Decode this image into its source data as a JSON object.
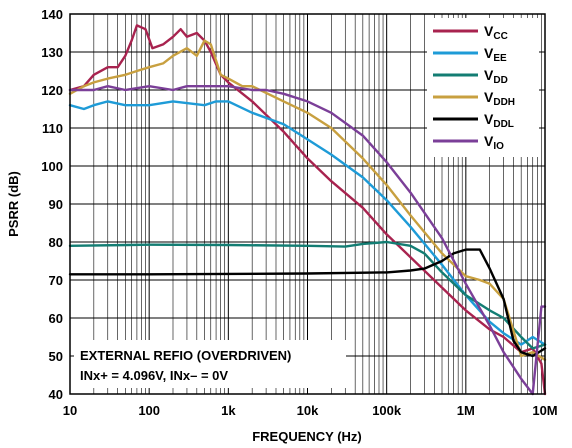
{
  "chart_data": {
    "type": "line",
    "xlabel": "FREQUENCY (Hz)",
    "ylabel": "PSRR (dB)",
    "x_scale": "log",
    "xlim": [
      10,
      10000000
    ],
    "ylim": [
      40,
      140
    ],
    "grid": true,
    "legend_position": "top-right",
    "x_ticks": [
      {
        "value": 10,
        "label": "10"
      },
      {
        "value": 100,
        "label": "100"
      },
      {
        "value": 1000,
        "label": "1k"
      },
      {
        "value": 10000,
        "label": "10k"
      },
      {
        "value": 100000,
        "label": "100k"
      },
      {
        "value": 1000000,
        "label": "1M"
      },
      {
        "value": 10000000,
        "label": "10M"
      }
    ],
    "y_ticks": [
      40,
      50,
      60,
      70,
      80,
      90,
      100,
      110,
      120,
      130,
      140
    ],
    "annotations": [
      "EXTERNAL REFIO (OVERDRIVEN)",
      "INx+ = 4.096V, INx– = 0V"
    ],
    "series": [
      {
        "name": "VCC",
        "base": "V",
        "sub": "CC",
        "color": "#a8234f",
        "x": [
          10,
          15,
          20,
          30,
          40,
          50,
          60,
          70,
          90,
          110,
          150,
          200,
          250,
          300,
          400,
          500,
          600,
          800,
          1000,
          2000,
          5000,
          10000,
          20000,
          50000,
          100000,
          200000,
          500000,
          1000000,
          2000000,
          3000000,
          5000000,
          7000000,
          9000000,
          10000000
        ],
        "y": [
          120,
          121,
          124,
          126,
          126,
          129,
          133,
          137,
          136,
          131,
          132,
          134,
          136,
          134,
          135,
          133,
          130,
          124,
          122,
          117,
          109,
          102,
          96,
          89,
          82,
          76,
          68,
          62,
          57,
          55,
          51,
          52,
          48,
          40
        ]
      },
      {
        "name": "VEE",
        "base": "V",
        "sub": "EE",
        "color": "#1e9bd7",
        "x": [
          10,
          15,
          20,
          30,
          50,
          100,
          200,
          500,
          700,
          1000,
          2000,
          5000,
          10000,
          20000,
          50000,
          100000,
          200000,
          500000,
          1000000,
          2000000,
          3000000,
          5000000,
          7000000,
          10000000
        ],
        "y": [
          116,
          115,
          116,
          117,
          116,
          116,
          117,
          116,
          117,
          117,
          114,
          111,
          107,
          103,
          97,
          91,
          84,
          74,
          66,
          59,
          56,
          53,
          55,
          53
        ]
      },
      {
        "name": "VDD",
        "base": "V",
        "sub": "DD",
        "color": "#137d73",
        "x": [
          10,
          100,
          1000,
          10000,
          30000,
          50000,
          100000,
          200000,
          300000,
          500000,
          1000000,
          2000000,
          3000000,
          5000000,
          7000000,
          10000000
        ],
        "y": [
          79,
          79.3,
          79.2,
          79,
          78.8,
          79.5,
          80,
          79,
          77,
          72,
          66,
          62,
          60,
          55,
          52,
          53
        ]
      },
      {
        "name": "VDDH",
        "base": "V",
        "sub": "DDH",
        "color": "#c8a040",
        "x": [
          10,
          15,
          20,
          30,
          50,
          70,
          100,
          150,
          200,
          300,
          400,
          500,
          600,
          800,
          1000,
          1500,
          2000,
          5000,
          10000,
          20000,
          50000,
          100000,
          200000,
          500000,
          1000000,
          1500000,
          2000000,
          3000000,
          5000000,
          7000000,
          10000000
        ],
        "y": [
          119,
          121,
          122,
          123,
          124,
          125,
          126,
          127,
          129,
          131,
          129,
          133,
          132,
          124,
          123,
          121,
          121,
          117,
          114,
          110,
          102,
          95,
          87,
          77,
          71,
          70,
          69,
          65,
          50,
          51,
          49
        ]
      },
      {
        "name": "VDDL",
        "base": "V",
        "sub": "DDL",
        "color": "#000000",
        "x": [
          10,
          100,
          1000,
          10000,
          100000,
          200000,
          300000,
          500000,
          700000,
          1000000,
          1500000,
          2000000,
          3000000,
          4000000,
          5000000,
          7000000,
          10000000
        ],
        "y": [
          71.5,
          71.5,
          71.6,
          71.7,
          72,
          72.5,
          73,
          75,
          77,
          78,
          78,
          73,
          65,
          54,
          51,
          50,
          52
        ]
      },
      {
        "name": "VIO",
        "base": "V",
        "sub": "IO",
        "color": "#7b3f98",
        "x": [
          10,
          20,
          30,
          50,
          100,
          200,
          300,
          500,
          1000,
          2000,
          3000,
          5000,
          10000,
          20000,
          50000,
          100000,
          200000,
          500000,
          1000000,
          2000000,
          3000000,
          5000000,
          7000000,
          9000000,
          10000000
        ],
        "y": [
          120,
          120,
          121,
          120,
          121,
          120,
          121,
          121,
          121,
          120,
          120,
          119,
          117,
          114,
          108,
          101,
          93,
          81,
          69,
          58,
          51,
          44,
          40,
          63,
          63
        ]
      }
    ]
  }
}
